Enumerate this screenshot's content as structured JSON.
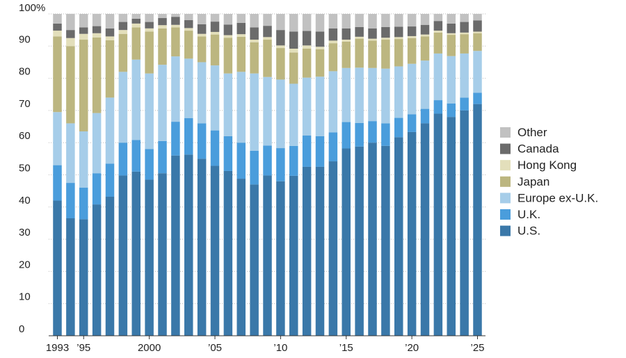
{
  "chart_data": {
    "type": "bar",
    "stacked": true,
    "title": "",
    "xlabel": "",
    "ylabel": "",
    "ylim": [
      0,
      100
    ],
    "y_ticks": [
      "0",
      "10",
      "20",
      "30",
      "40",
      "50",
      "60",
      "70",
      "80",
      "90",
      "100%"
    ],
    "x_tick_labels": [
      {
        "year": 1993,
        "label": "1993"
      },
      {
        "year": 1995,
        "label": "’95"
      },
      {
        "year": 2000,
        "label": "2000"
      },
      {
        "year": 2005,
        "label": "’05"
      },
      {
        "year": 2010,
        "label": "’10"
      },
      {
        "year": 2015,
        "label": "’15"
      },
      {
        "year": 2020,
        "label": "’20"
      },
      {
        "year": 2025,
        "label": "’25"
      }
    ],
    "categories": [
      1993,
      1994,
      1995,
      1996,
      1997,
      1998,
      1999,
      2000,
      2001,
      2002,
      2003,
      2004,
      2005,
      2006,
      2007,
      2008,
      2009,
      2010,
      2011,
      2012,
      2013,
      2014,
      2015,
      2016,
      2017,
      2018,
      2019,
      2020,
      2021,
      2022,
      2023,
      2024,
      2025
    ],
    "series": [
      {
        "name": "U.S.",
        "color": "#3a78a9",
        "values": [
          42,
          36.5,
          36.2,
          40.8,
          43.2,
          49.8,
          51,
          48.5,
          50.5,
          56,
          56.3,
          55,
          52.8,
          51.2,
          48.8,
          47,
          49.8,
          48,
          49.7,
          52.5,
          52.5,
          54.2,
          58.2,
          58.8,
          60,
          59,
          61.7,
          63.3,
          66,
          69,
          68,
          70,
          72
        ]
      },
      {
        "name": "U.K.",
        "color": "#4a9ddc",
        "values": [
          11,
          11,
          9.8,
          9.7,
          10.3,
          10.2,
          9.8,
          9.5,
          10,
          10.5,
          11.3,
          11,
          11,
          10.8,
          11.2,
          10.5,
          9.3,
          10.3,
          9.3,
          9.7,
          9.5,
          9,
          8.2,
          7.3,
          6.7,
          7,
          6,
          5.5,
          4.5,
          4.2,
          4.2,
          4,
          3.5
        ]
      },
      {
        "name": "Europe ex-U.K.",
        "color": "#a6cde9",
        "values": [
          16.5,
          18.5,
          17.5,
          18.7,
          20.5,
          22,
          25,
          23.5,
          23.7,
          20.3,
          18.5,
          19,
          20.2,
          19.5,
          22,
          24,
          21.3,
          21.3,
          19.3,
          18,
          18.5,
          19,
          16.8,
          17.2,
          16.5,
          17,
          16,
          15.7,
          15,
          14.5,
          14.7,
          13.7,
          13
        ]
      },
      {
        "name": "Japan",
        "color": "#bcb680",
        "values": [
          23.5,
          24,
          28.5,
          23.5,
          17.8,
          11.8,
          10,
          13,
          11.3,
          9,
          8.7,
          8,
          9.6,
          11.1,
          10.9,
          9.7,
          11.6,
          9.8,
          9.7,
          9,
          8.5,
          8.7,
          8.2,
          9,
          8.5,
          9,
          8.5,
          8,
          7.5,
          6.5,
          6.6,
          6,
          5.5
        ]
      },
      {
        "name": "Hong Kong",
        "color": "#e3dfbb",
        "values": [
          1.8,
          2.5,
          1.8,
          1.3,
          1.2,
          1.2,
          1.2,
          1,
          1,
          0.8,
          0.8,
          0.8,
          0.8,
          0.8,
          0.8,
          0.8,
          0.8,
          0.8,
          1.2,
          1,
          0.8,
          0.8,
          0.6,
          0.6,
          0.6,
          0.6,
          0.6,
          0.6,
          0.6,
          0.6,
          0.5,
          0.5,
          0.5
        ]
      },
      {
        "name": "Canada",
        "color": "#6b6b6b",
        "values": [
          2.2,
          2.5,
          2,
          2.2,
          2.5,
          2.5,
          1.5,
          2,
          2.2,
          2.5,
          2.5,
          3,
          3.2,
          3.3,
          3.5,
          3.8,
          3.5,
          4.8,
          5.3,
          4.5,
          4.7,
          3.8,
          3.5,
          3,
          3.2,
          3.3,
          3.2,
          3,
          3,
          3,
          3,
          3.3,
          3.5
        ]
      },
      {
        "name": "Other",
        "color": "#c1c1c1",
        "values": [
          3,
          5,
          4.2,
          3.8,
          4.5,
          2.5,
          1.5,
          2.5,
          1.3,
          0.9,
          1.9,
          3.2,
          2.4,
          3.3,
          2.8,
          4.2,
          3.7,
          5,
          5.5,
          5.3,
          5.5,
          4.5,
          4.5,
          4.1,
          4.5,
          4.1,
          4,
          3.9,
          3.4,
          2.2,
          3,
          2.5,
          2
        ]
      }
    ],
    "grid": "horizontal, dotted",
    "legend": {
      "placement": "right",
      "order": [
        "Other",
        "Canada",
        "Hong Kong",
        "Japan",
        "Europe ex-U.K.",
        "U.K.",
        "U.S."
      ]
    }
  }
}
